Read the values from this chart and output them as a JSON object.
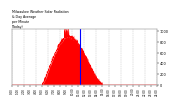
{
  "title_line1": "Milwaukee Weather Solar Radiation",
  "title_line2": "& Day Average",
  "title_line3": "per Minute",
  "title_line4": "(Today)",
  "bg_color": "#ffffff",
  "plot_bg_color": "#ffffff",
  "text_color": "#000000",
  "grid_color": "#aaaaaa",
  "red_color": "#ff0000",
  "blue_color": "#0000ff",
  "peak_value": 900,
  "total_minutes": 1440,
  "sunrise_minute": 300,
  "sunset_minute": 900,
  "peak_minute": 560,
  "current_solar_minute": 680,
  "ylim_max": 1050,
  "yticks": [
    0,
    200,
    400,
    600,
    800,
    1000
  ],
  "grid_interval_minutes": 120,
  "xtick_interval_minutes": 60
}
